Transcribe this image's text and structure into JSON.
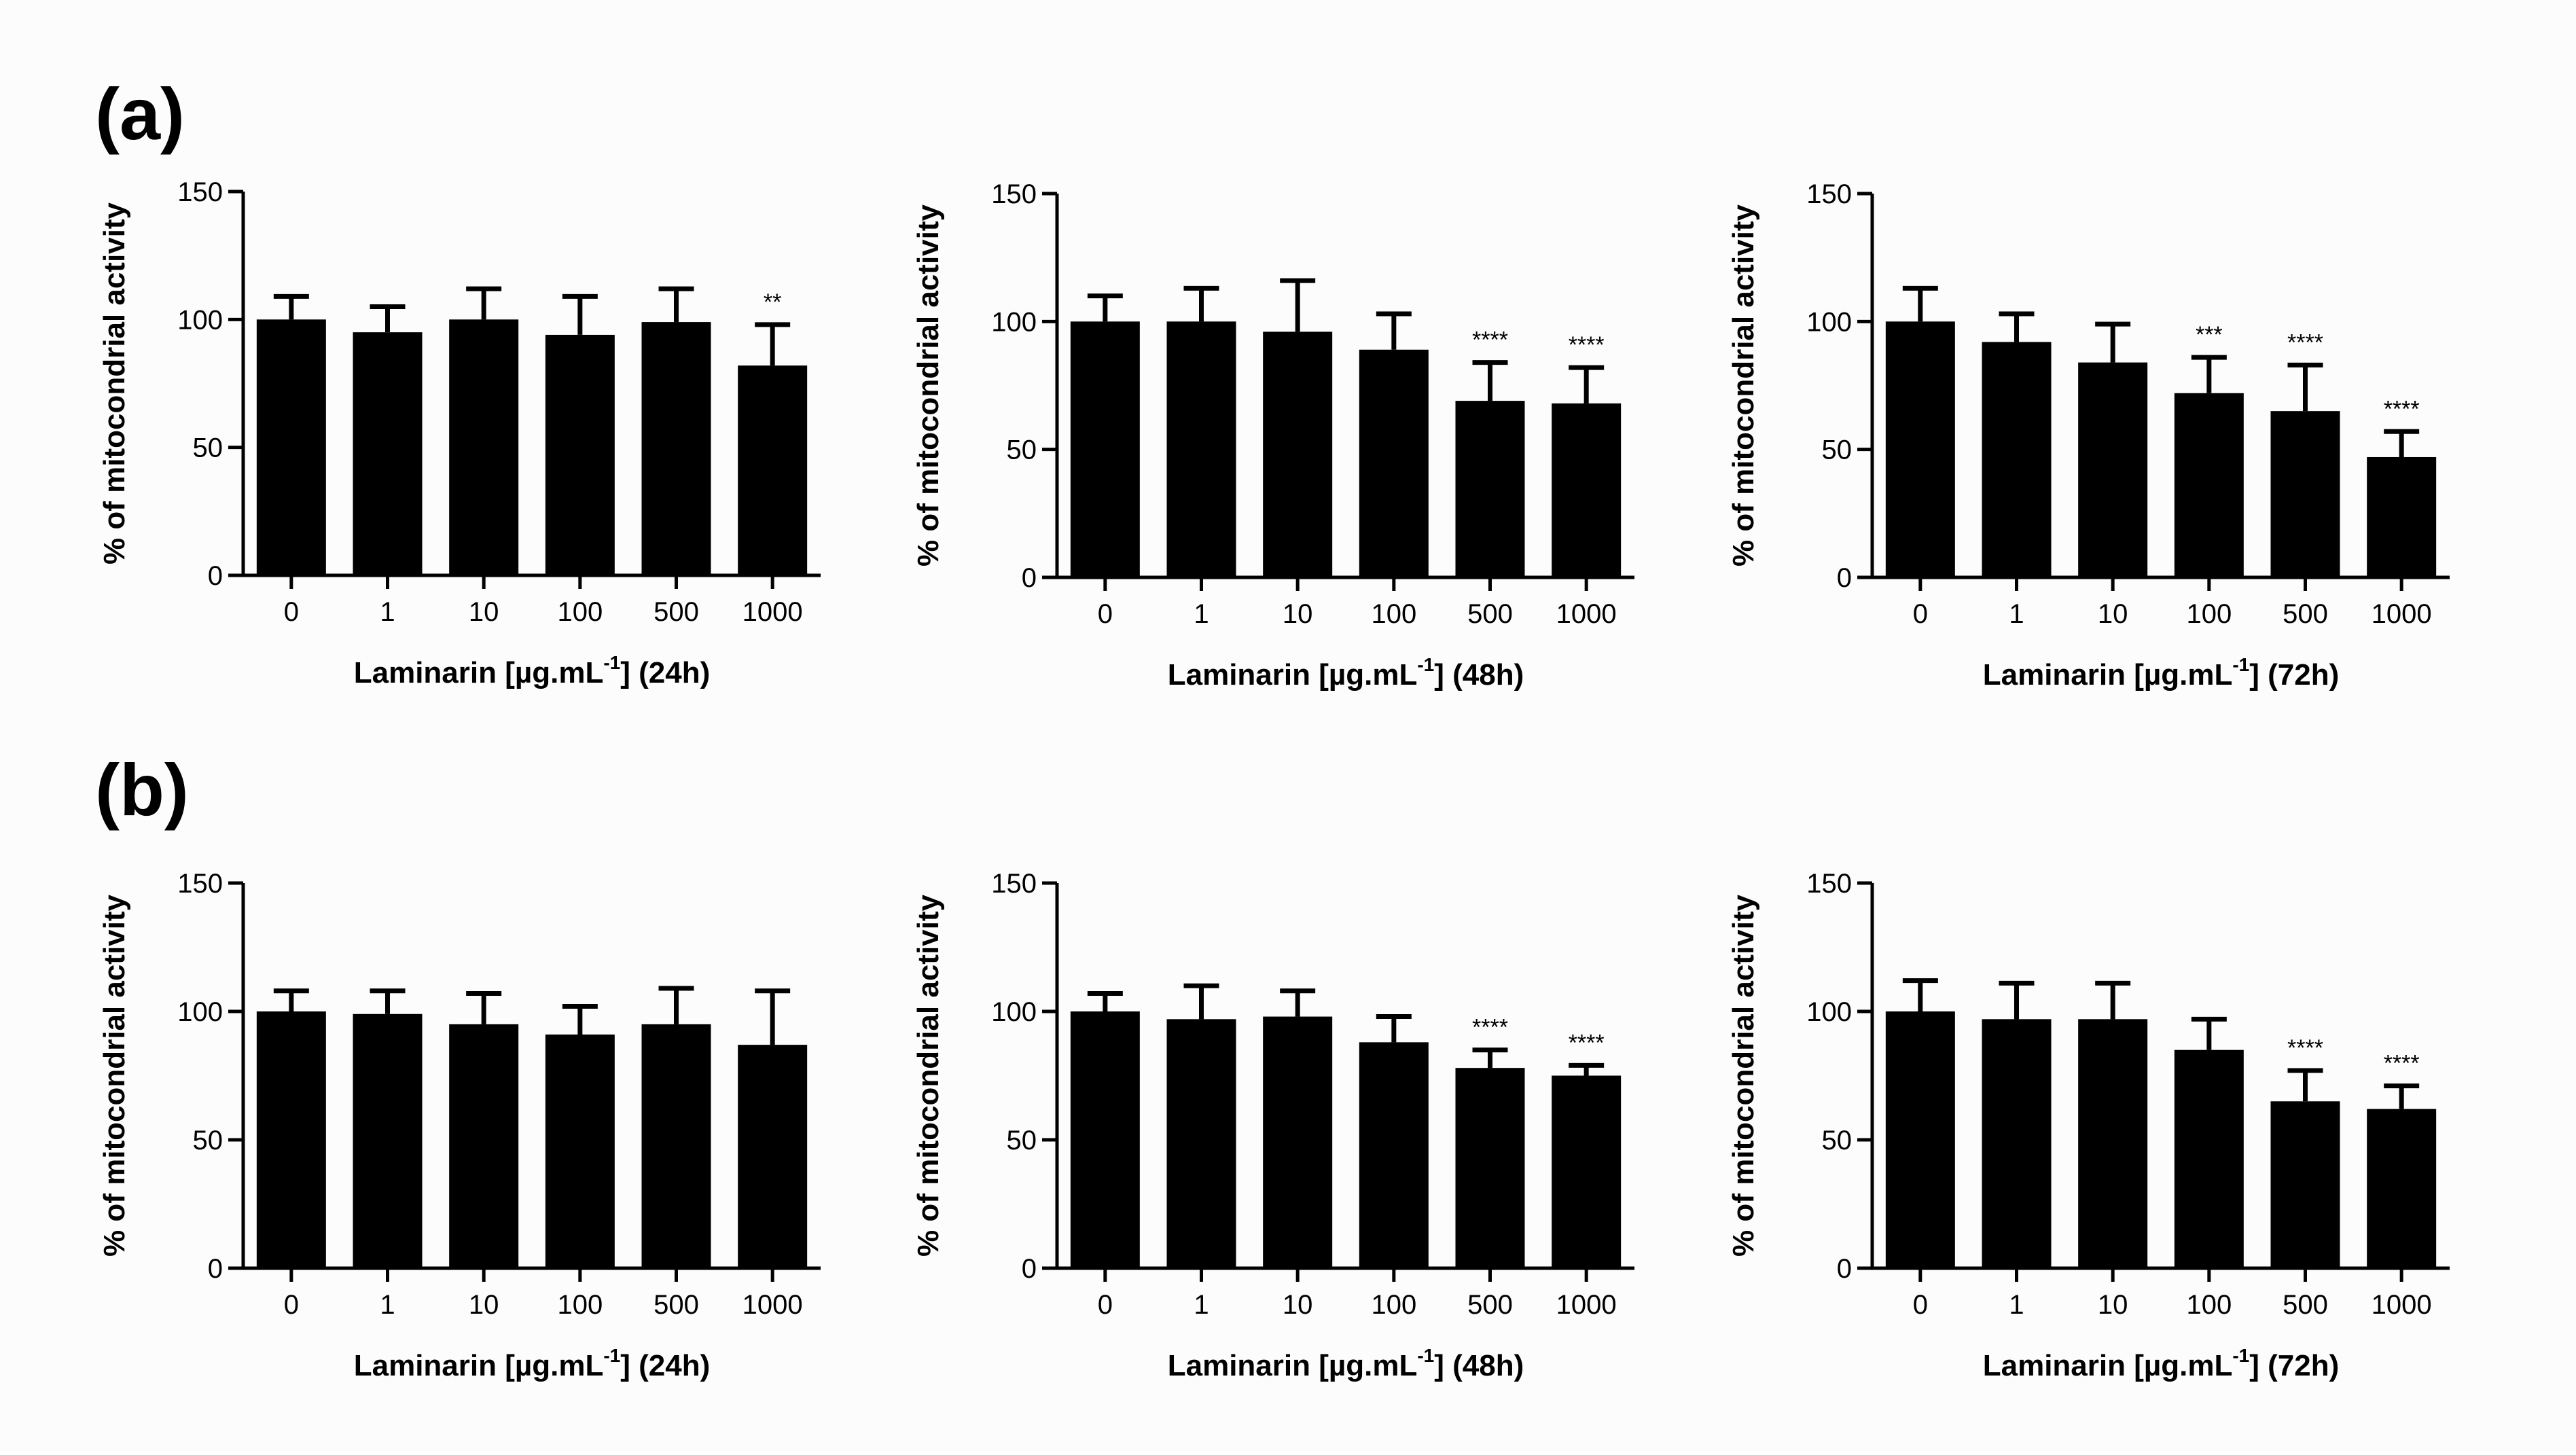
{
  "panels": [
    {
      "label": "(a)"
    },
    {
      "label": "(b)"
    }
  ],
  "chart_data": [
    {
      "type": "bar",
      "panel": "(a)",
      "title": "",
      "categories": [
        "0",
        "1",
        "10",
        "100",
        "500",
        "1000"
      ],
      "values": [
        100,
        95,
        100,
        94,
        99,
        82
      ],
      "errors": [
        9,
        10,
        12,
        15,
        13,
        16
      ],
      "significance": [
        "",
        "",
        "",
        "",
        "",
        "**"
      ],
      "ylabel": "% of mitocondrial activity",
      "xlabel_pre": "Laminarin [µg.mL",
      "xlabel_sup": "-1",
      "xlabel_post": "]  (24h)",
      "ylim": [
        0,
        150
      ],
      "yticks": [
        "0",
        "50",
        "100",
        "150"
      ]
    },
    {
      "type": "bar",
      "panel": "(a)",
      "title": "",
      "categories": [
        "0",
        "1",
        "10",
        "100",
        "500",
        "1000"
      ],
      "values": [
        100,
        100,
        96,
        89,
        69,
        68
      ],
      "errors": [
        10,
        13,
        20,
        14,
        15,
        14
      ],
      "significance": [
        "",
        "",
        "",
        "",
        "****",
        "****"
      ],
      "ylabel": "% of mitocondrial activity",
      "xlabel_pre": "Laminarin [µg.mL",
      "xlabel_sup": "-1",
      "xlabel_post": "]  (48h)",
      "ylim": [
        0,
        150
      ],
      "yticks": [
        "0",
        "50",
        "100",
        "150"
      ]
    },
    {
      "type": "bar",
      "panel": "(a)",
      "title": "",
      "categories": [
        "0",
        "1",
        "10",
        "100",
        "500",
        "1000"
      ],
      "values": [
        100,
        92,
        84,
        72,
        65,
        47
      ],
      "errors": [
        13,
        11,
        15,
        14,
        18,
        10
      ],
      "significance": [
        "",
        "",
        "",
        "***",
        "****",
        "****"
      ],
      "ylabel": "% of mitocondrial activity",
      "xlabel_pre": "Laminarin [µg.mL",
      "xlabel_sup": "-1",
      "xlabel_post": "]  (72h)",
      "ylim": [
        0,
        150
      ],
      "yticks": [
        "0",
        "50",
        "100",
        "150"
      ]
    },
    {
      "type": "bar",
      "panel": "(b)",
      "title": "",
      "categories": [
        "0",
        "1",
        "10",
        "100",
        "500",
        "1000"
      ],
      "values": [
        100,
        99,
        95,
        91,
        95,
        87
      ],
      "errors": [
        8,
        9,
        12,
        11,
        14,
        21
      ],
      "significance": [
        "",
        "",
        "",
        "",
        "",
        ""
      ],
      "ylabel": "% of mitocondrial activity",
      "xlabel_pre": "Laminarin [µg.mL",
      "xlabel_sup": "-1",
      "xlabel_post": "] (24h)",
      "ylim": [
        0,
        150
      ],
      "yticks": [
        "0",
        "50",
        "100",
        "150"
      ]
    },
    {
      "type": "bar",
      "panel": "(b)",
      "title": "",
      "categories": [
        "0",
        "1",
        "10",
        "100",
        "500",
        "1000"
      ],
      "values": [
        100,
        97,
        98,
        88,
        78,
        75
      ],
      "errors": [
        7,
        13,
        10,
        10,
        7,
        4
      ],
      "significance": [
        "",
        "",
        "",
        "",
        "****",
        "****"
      ],
      "ylabel": "% of mitocondrial activity",
      "xlabel_pre": "Laminarin [µg.mL",
      "xlabel_sup": "-1",
      "xlabel_post": "] (48h)",
      "ylim": [
        0,
        150
      ],
      "yticks": [
        "0",
        "50",
        "100",
        "150"
      ]
    },
    {
      "type": "bar",
      "panel": "(b)",
      "title": "",
      "categories": [
        "0",
        "1",
        "10",
        "100",
        "500",
        "1000"
      ],
      "values": [
        100,
        97,
        97,
        85,
        65,
        62
      ],
      "errors": [
        12,
        14,
        14,
        12,
        12,
        9
      ],
      "significance": [
        "",
        "",
        "",
        "",
        "****",
        "****"
      ],
      "ylabel": "% of mitocondrial activity",
      "xlabel_pre": "Laminarin [µg.mL",
      "xlabel_sup": "-1",
      "xlabel_post": "] (72h)",
      "ylim": [
        0,
        150
      ],
      "yticks": [
        "0",
        "50",
        "100",
        "150"
      ]
    }
  ]
}
